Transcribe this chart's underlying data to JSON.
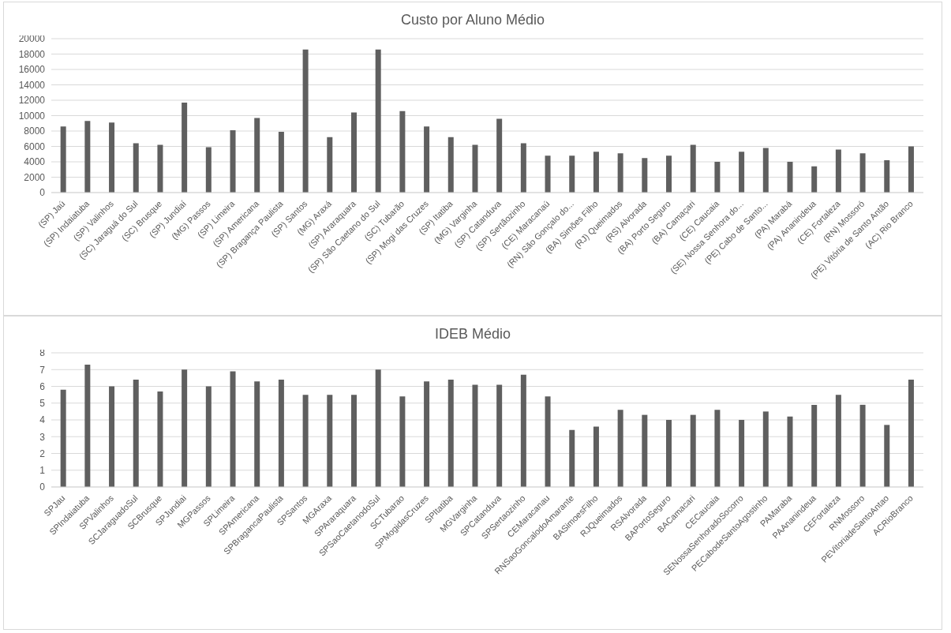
{
  "chart_data": [
    {
      "type": "bar",
      "title": "Custo por Aluno Médio",
      "categories": [
        "(SP) Jaú",
        "(SP) Indaiatuba",
        "(SP) Valinhos",
        "(SC) Jaraguá do Sul",
        "(SC) Brusque",
        "(SP) Jundiaí",
        "(MG) Passos",
        "(SP) Limeira",
        "(SP) Americana",
        "(SP) Bragança Paulista",
        "(SP) Santos",
        "(MG) Araxá",
        "(SP) Araraquara",
        "(SP) São Caetano do Sul",
        "(SC) Tubarão",
        "(SP) Mogi das Cruzes",
        "(SP) Itatiba",
        "(MG) Varginha",
        "(SP) Catanduva",
        "(SP) Sertãozinho",
        "(CE) Maracanaú",
        "(RN) São Gonçalo do...",
        "(BA) Simões Filho",
        "(RJ) Queimados",
        "(RS) Alvorada",
        "(BA) Porto Seguro",
        "(BA) Camaçari",
        "(CE) Caucaia",
        "(SE) Nossa Senhora do...",
        "(PE) Cabo de Santo...",
        "(PA) Marabá",
        "(PA) Ananindeua",
        "(CE) Fortaleza",
        "(RN) Mossoró",
        "(PE) Vitória de Santo Antão",
        "(AC) Rio Branco"
      ],
      "values": [
        8600,
        9300,
        9100,
        6400,
        6200,
        11700,
        5900,
        8100,
        9700,
        7900,
        18600,
        7200,
        10400,
        18600,
        10600,
        8600,
        7200,
        6200,
        9600,
        6400,
        4800,
        4800,
        5300,
        5100,
        4500,
        4800,
        6200,
        4000,
        5300,
        5800,
        4000,
        3400,
        5600,
        5100,
        4200,
        6000
      ],
      "color": "#5f5f5f",
      "ylim": [
        0,
        20000
      ],
      "yticks": [
        0,
        2000,
        4000,
        6000,
        8000,
        10000,
        12000,
        14000,
        16000,
        18000,
        20000
      ],
      "grid": "y",
      "legend": false
    },
    {
      "type": "bar",
      "title": "IDEB Médio",
      "categories": [
        "SPJau",
        "SPIndaiatuba",
        "SPValinhos",
        "SCJaraguadoSul",
        "SCBrusque",
        "SPJundiai",
        "MGPassos",
        "SPLimeira",
        "SPAmericana",
        "SPBragancaPaulista",
        "SPSantos",
        "MGAraxa",
        "SPAraraquara",
        "SPSaoCaetanodoSul",
        "SCTubarao",
        "SPMogidasCruzes",
        "SPItatiba",
        "MGVarginha",
        "SPCatanduva",
        "SPSertaozinho",
        "CEMaracanau",
        "RNSaoGoncalodoAmarante",
        "BASimoesFilho",
        "RJQueimados",
        "RSAlvorada",
        "BAPortoSeguro",
        "BACamacari",
        "CECaucaia",
        "SENossaSenhoradoSocorro",
        "PECabodeSantoAgostinho",
        "PAMaraba",
        "PAAnanindeua",
        "CEFortaleza",
        "RNMossoro",
        "PEVitoriadeSantoAntao",
        "ACRioBranco"
      ],
      "values": [
        5.8,
        7.3,
        6.0,
        6.4,
        5.7,
        7.0,
        6.0,
        6.9,
        6.3,
        6.4,
        5.5,
        5.5,
        5.5,
        7.0,
        5.4,
        6.3,
        6.4,
        6.1,
        6.1,
        6.7,
        5.4,
        3.4,
        3.6,
        4.6,
        4.3,
        4.0,
        4.3,
        4.6,
        4.0,
        4.5,
        4.2,
        4.9,
        5.5,
        4.9,
        3.7,
        6.4
      ],
      "color": "#5f5f5f",
      "ylim": [
        0,
        8
      ],
      "yticks": [
        0,
        1,
        2,
        3,
        4,
        5,
        6,
        7,
        8
      ],
      "grid": "y",
      "legend": false
    }
  ]
}
